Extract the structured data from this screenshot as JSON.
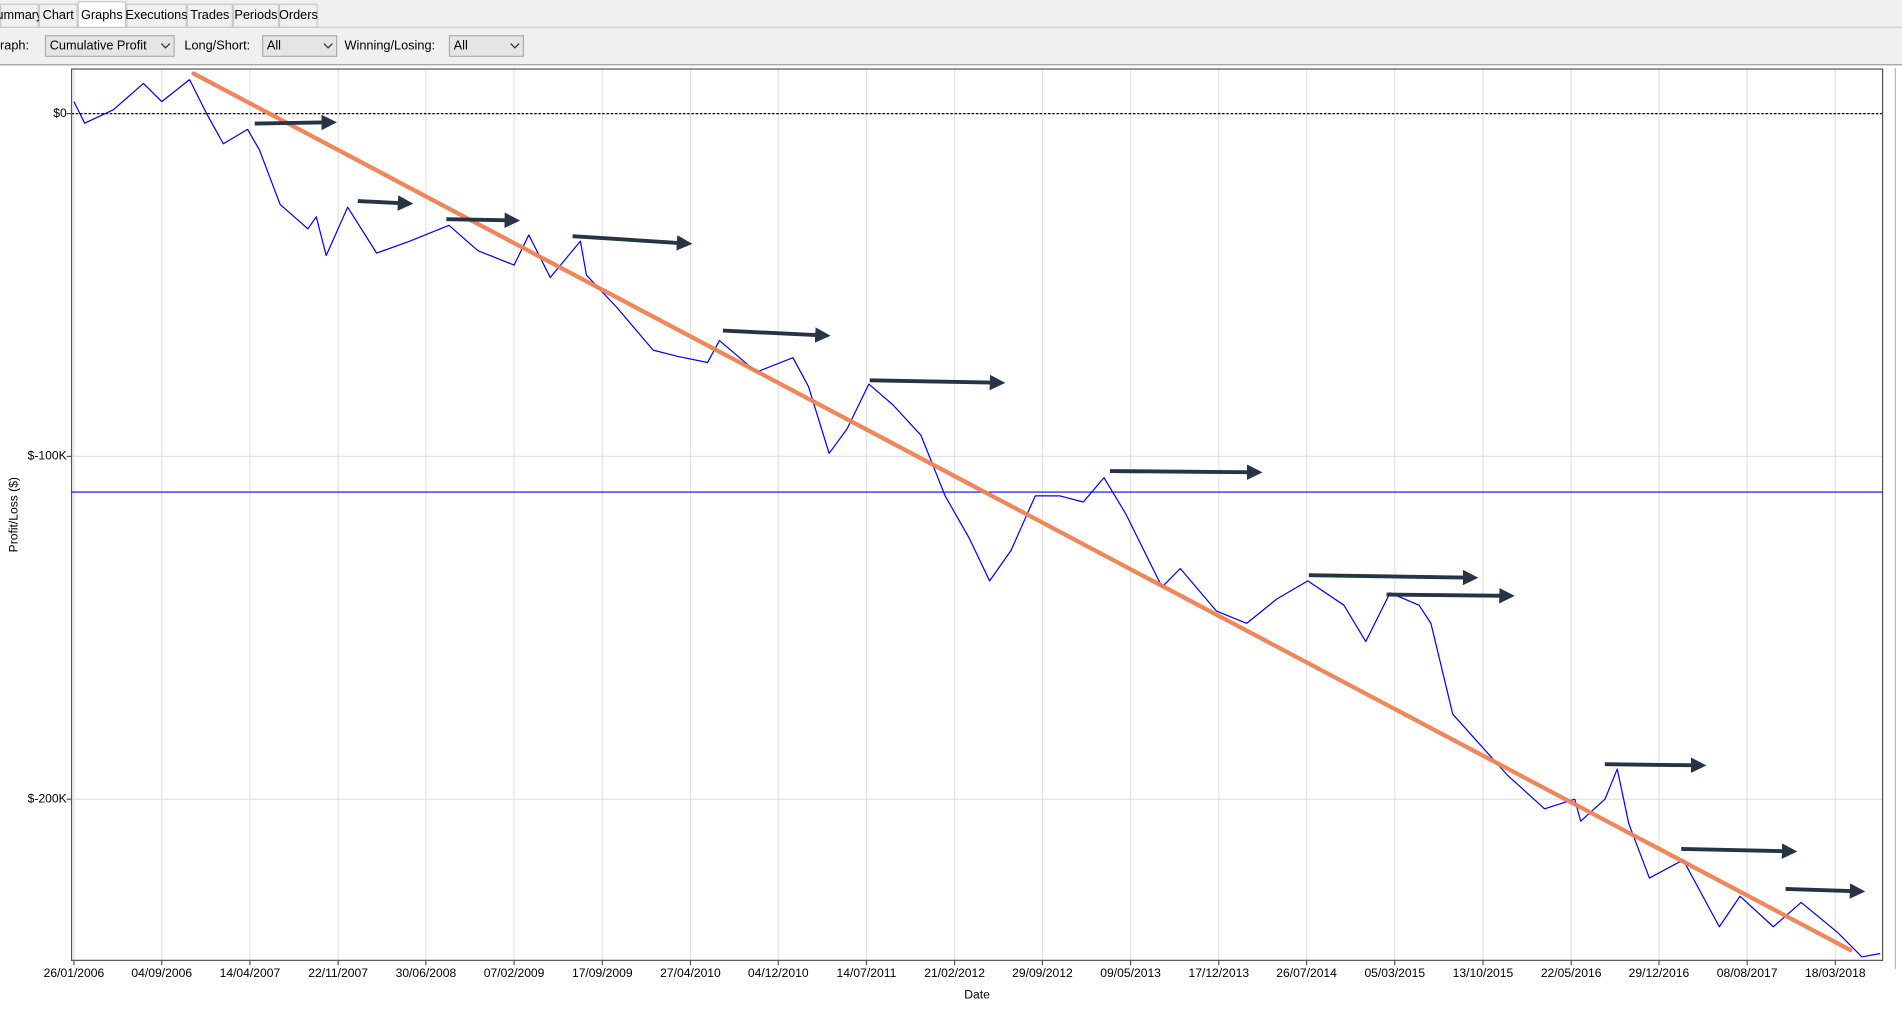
{
  "tabs": [
    "ummary",
    "Chart",
    "Graphs",
    "Executions",
    "Trades",
    "Periods",
    "Orders"
  ],
  "selected_tab": 2,
  "controls": {
    "graph_label": "raph:",
    "graph_value": "Cumulative Profit",
    "long_short_label": "Long/Short:",
    "long_short_value": "All",
    "winning_losing_label": "Winning/Losing:",
    "winning_losing_value": "All"
  },
  "chart_data": {
    "type": "line",
    "x_label": "Date",
    "y_label": "Profit/Loss ($)",
    "xlim": [
      "20/01/2006",
      "15/07/2018"
    ],
    "ylim": [
      -247000,
      13000
    ],
    "xticks": [
      "26/01/2006",
      "04/09/2006",
      "14/04/2007",
      "22/11/2007",
      "30/06/2008",
      "07/02/2009",
      "17/09/2009",
      "27/04/2010",
      "04/12/2010",
      "14/07/2011",
      "21/02/2012",
      "29/09/2012",
      "09/05/2013",
      "17/12/2013",
      "26/07/2014",
      "05/03/2015",
      "13/10/2015",
      "22/05/2016",
      "29/12/2016",
      "08/08/2017",
      "18/03/2018"
    ],
    "yticks": [
      {
        "value": 0,
        "label": "$0"
      },
      {
        "value": -100000,
        "label": "$-100K"
      },
      {
        "value": -200000,
        "label": "$-200K"
      }
    ],
    "grid": true,
    "zero_line": true,
    "x": [
      "26/01/2006",
      "22/02/2006",
      "05/05/2006",
      "20/07/2006",
      "04/09/2006",
      "13/11/2006",
      "26/12/2006",
      "06/02/2007",
      "08/04/2007",
      "08/05/2007",
      "29/06/2007",
      "07/09/2007",
      "28/09/2007",
      "23/10/2007",
      "16/12/2007",
      "27/02/2008",
      "21/05/2008",
      "27/08/2008",
      "08/11/2008",
      "07/02/2009",
      "16/03/2009",
      "09/05/2009",
      "24/07/2009",
      "08/08/2009",
      "24/10/2009",
      "23/01/2010",
      "25/03/2010",
      "09/06/2010",
      "09/07/2010",
      "10/10/2010",
      "10/01/2011",
      "18/02/2011",
      "11/04/2011",
      "26/05/2011",
      "20/07/2011",
      "19/09/2011",
      "28/11/2011",
      "28/01/2012",
      "29/03/2012",
      "19/05/2012",
      "12/07/2012",
      "11/09/2012",
      "11/11/2012",
      "10/01/2013",
      "03/03/2013",
      "27/04/2013",
      "27/07/2013",
      "11/09/2013",
      "11/12/2013",
      "25/02/2014",
      "12/05/2014",
      "29/07/2014",
      "28/10/2014",
      "22/12/2014",
      "21/02/2015",
      "05/05/2015",
      "04/06/2015",
      "29/07/2015",
      "22/09/2015",
      "13/12/2015",
      "16/03/2016",
      "31/05/2016",
      "15/06/2016",
      "15/08/2016",
      "15/09/2016",
      "14/10/2016",
      "05/12/2016",
      "28/02/2017",
      "30/05/2017",
      "21/07/2017",
      "13/10/2017",
      "22/12/2017",
      "24/03/2018",
      "24/05/2018",
      "09/07/2018"
    ],
    "series": [
      {
        "color": "#0000ff",
        "values": [
          3500,
          -2800,
          1100,
          8800,
          3500,
          9900,
          0,
          -8800,
          -4600,
          -10600,
          -26500,
          -33600,
          -30100,
          -41400,
          -27300,
          -40700,
          -37200,
          -32600,
          -40000,
          -44200,
          -35400,
          -47800,
          -37200,
          -47100,
          -56600,
          -69000,
          -70800,
          -72600,
          -66200,
          -75400,
          -71200,
          -79600,
          -99100,
          -92000,
          -78900,
          -85000,
          -93800,
          -111500,
          -123900,
          -136300,
          -127400,
          -111500,
          -111500,
          -113300,
          -106200,
          -116800,
          -138100,
          -132700,
          -145100,
          -148700,
          -141600,
          -136300,
          -143400,
          -154000,
          -139800,
          -143400,
          -148700,
          -175200,
          -182300,
          -192900,
          -202800,
          -200000,
          -206400,
          -200000,
          -191200,
          -207100,
          -223000,
          -217700,
          -237200,
          -228300,
          -237200,
          -230100,
          -238900,
          -246000,
          -245000
        ]
      }
    ],
    "reference_line": {
      "value": -110400,
      "color": "#0000ff"
    },
    "trend_line": {
      "x": [
        "23/11/2006",
        "25/04/2018"
      ],
      "values": [
        11700,
        -244000
      ],
      "color": "#f0804f"
    }
  }
}
